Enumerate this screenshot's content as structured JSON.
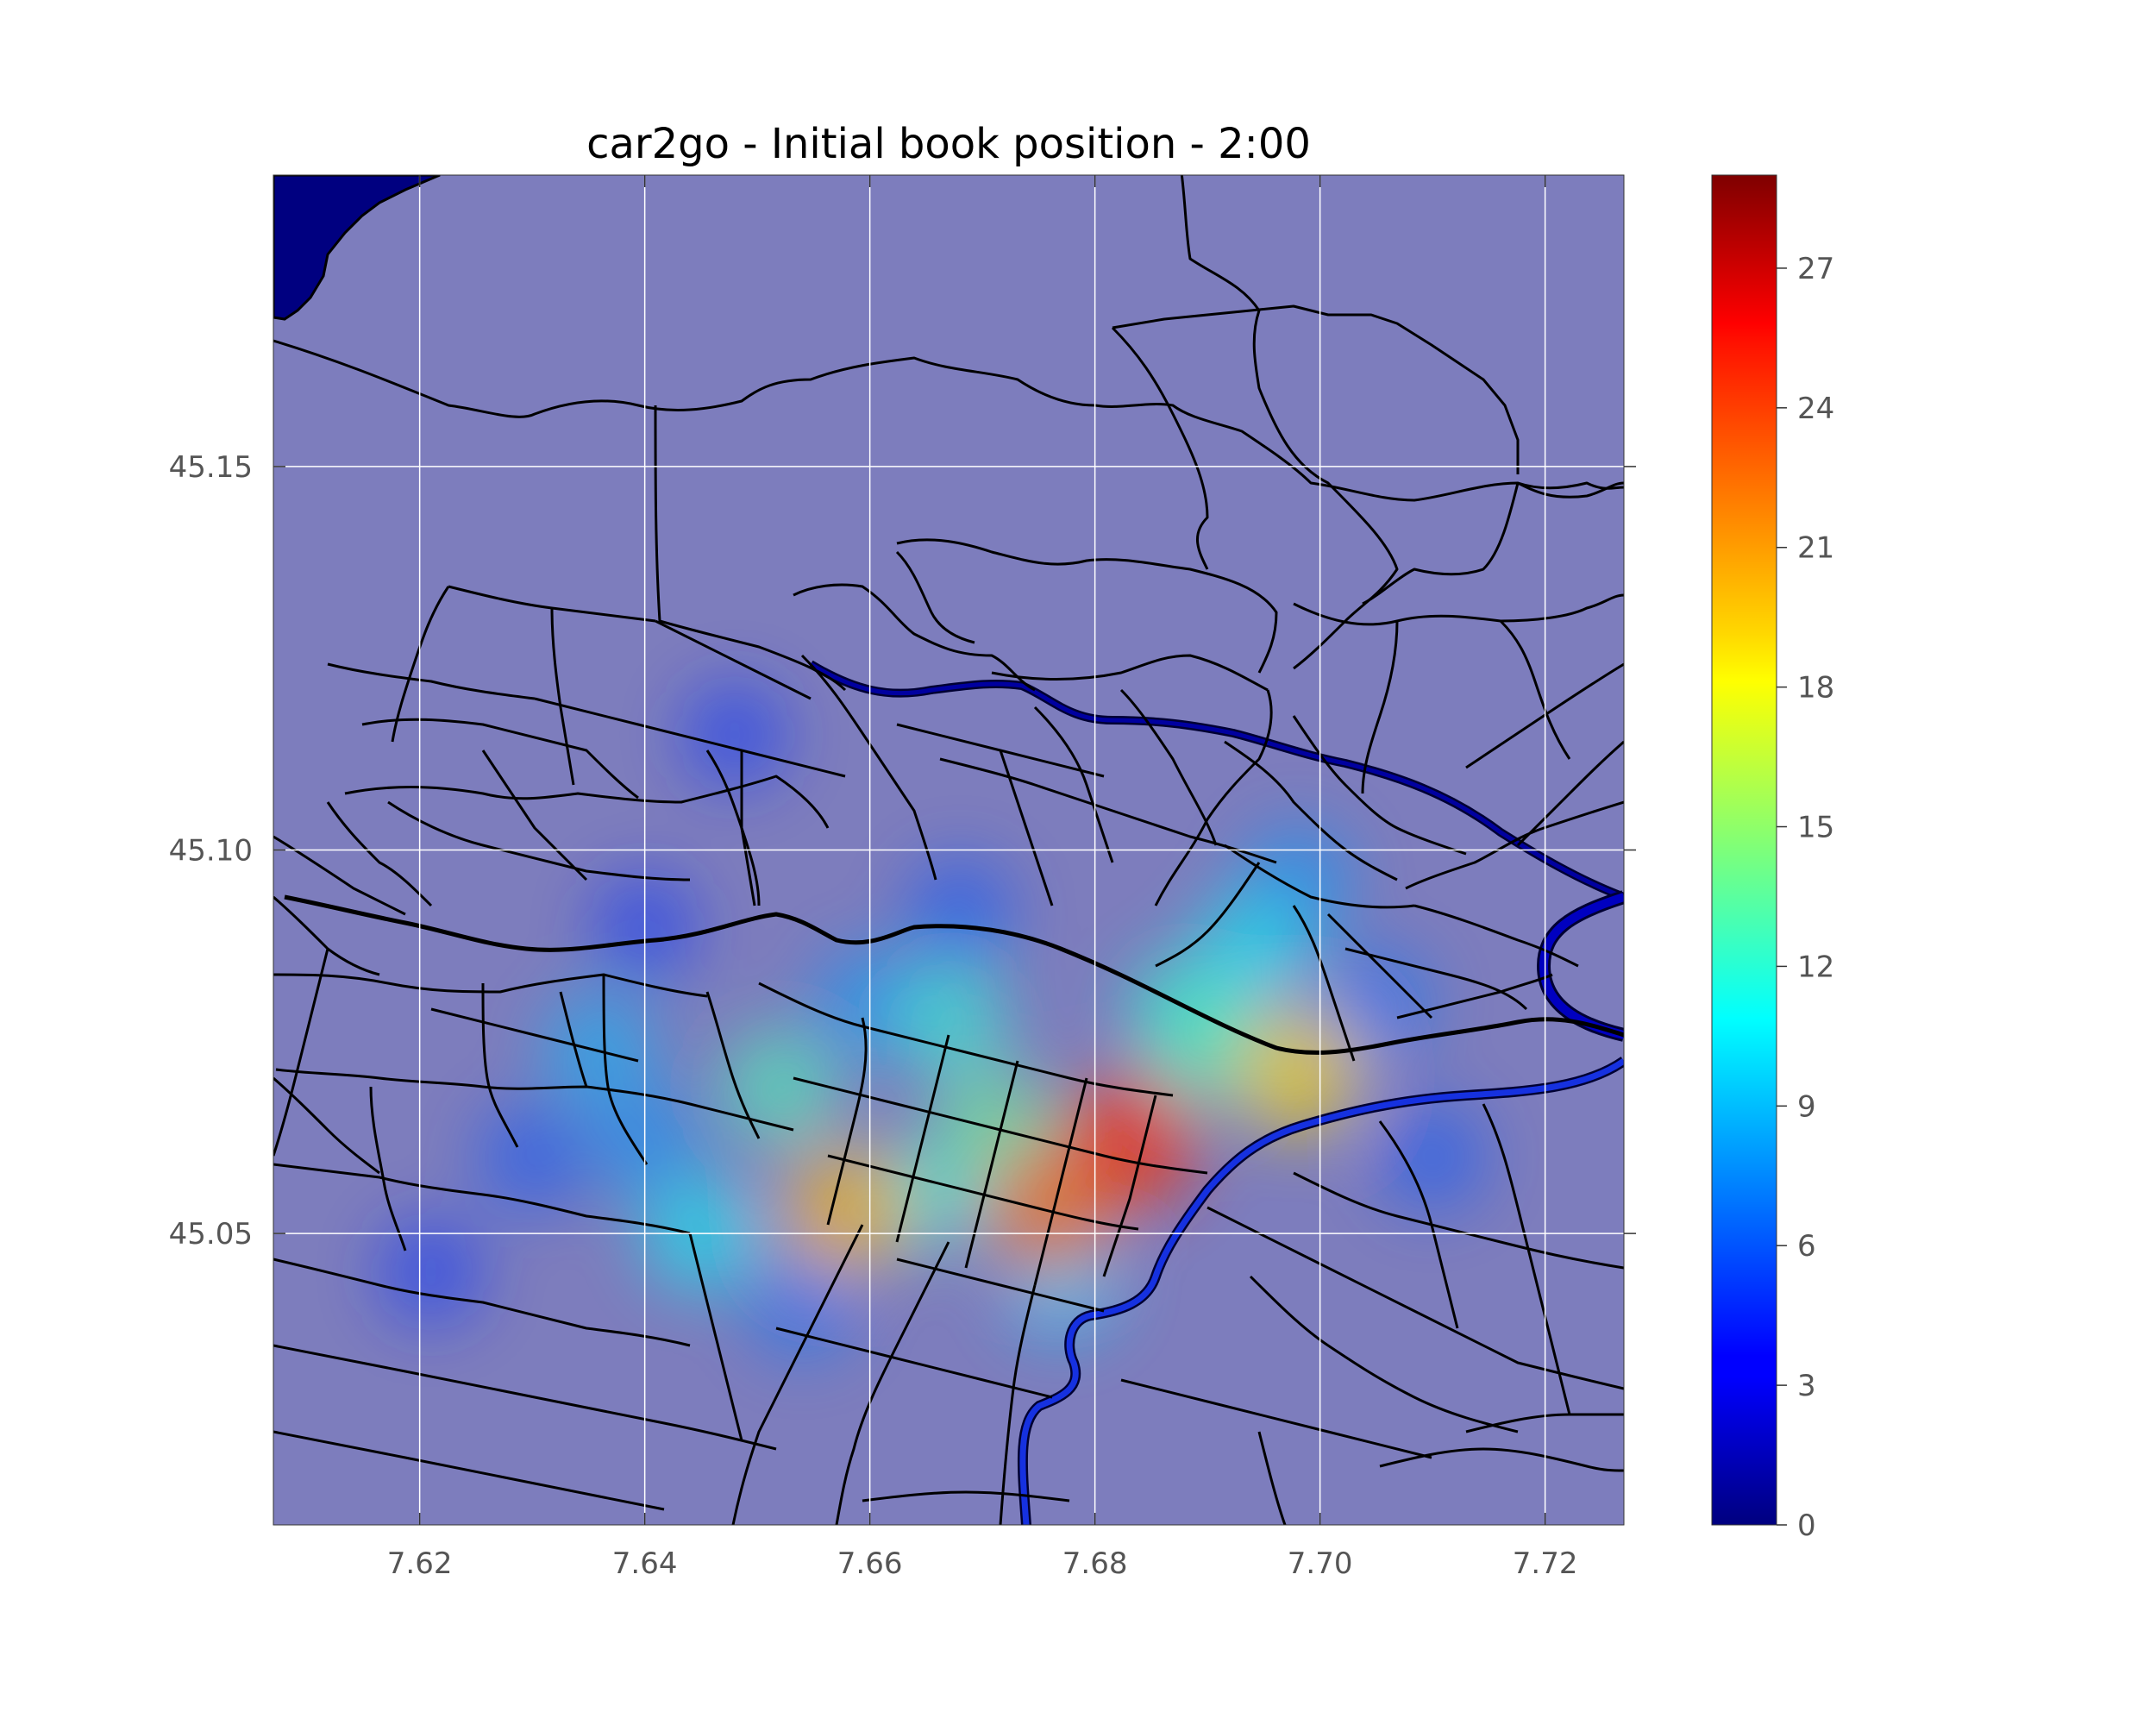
{
  "chart_data": {
    "type": "heatmap",
    "title": "car2go - Initial book position - 2:00",
    "xlabel": "",
    "ylabel": "",
    "xlim": [
      7.607,
      7.727
    ],
    "ylim": [
      45.012,
      45.188
    ],
    "x_ticks": [
      "7.62",
      "7.64",
      "7.66",
      "7.68",
      "7.70",
      "7.72"
    ],
    "x_tick_values": [
      7.62,
      7.64,
      7.66,
      7.68,
      7.7,
      7.72
    ],
    "y_ticks": [
      "45.05",
      "45.10",
      "45.15"
    ],
    "y_tick_values": [
      45.05,
      45.1,
      45.15
    ],
    "grid": true,
    "colormap": "jet",
    "colorbar": {
      "min": 0,
      "max": 29,
      "ticks": [
        "0",
        "3",
        "6",
        "9",
        "12",
        "15",
        "18",
        "21",
        "24",
        "27"
      ],
      "tick_values": [
        0,
        3,
        6,
        9,
        12,
        15,
        18,
        21,
        24,
        27
      ]
    },
    "hotspots": [
      {
        "lon": 7.683,
        "lat": 45.062,
        "value": 24
      },
      {
        "lon": 7.676,
        "lat": 45.053,
        "value": 22
      },
      {
        "lon": 7.658,
        "lat": 45.053,
        "value": 20
      },
      {
        "lon": 7.698,
        "lat": 45.071,
        "value": 19
      },
      {
        "lon": 7.671,
        "lat": 45.064,
        "value": 14
      },
      {
        "lon": 7.69,
        "lat": 45.074,
        "value": 13
      },
      {
        "lon": 7.652,
        "lat": 45.069,
        "value": 13
      },
      {
        "lon": 7.667,
        "lat": 45.078,
        "value": 12
      },
      {
        "lon": 7.694,
        "lat": 45.087,
        "value": 11
      },
      {
        "lon": 7.688,
        "lat": 45.079,
        "value": 12
      },
      {
        "lon": 7.645,
        "lat": 45.05,
        "value": 11
      },
      {
        "lon": 7.665,
        "lat": 45.055,
        "value": 12
      },
      {
        "lon": 7.636,
        "lat": 45.074,
        "value": 9
      },
      {
        "lon": 7.677,
        "lat": 45.044,
        "value": 10
      },
      {
        "lon": 7.64,
        "lat": 45.062,
        "value": 8
      },
      {
        "lon": 7.66,
        "lat": 45.08,
        "value": 8
      },
      {
        "lon": 7.698,
        "lat": 45.096,
        "value": 8
      },
      {
        "lon": 7.71,
        "lat": 45.06,
        "value": 6
      },
      {
        "lon": 7.654,
        "lat": 45.041,
        "value": 7
      },
      {
        "lon": 7.63,
        "lat": 45.06,
        "value": 6
      },
      {
        "lon": 7.668,
        "lat": 45.092,
        "value": 6
      },
      {
        "lon": 7.648,
        "lat": 45.115,
        "value": 5
      },
      {
        "lon": 7.705,
        "lat": 45.08,
        "value": 7
      },
      {
        "lon": 7.621,
        "lat": 45.045,
        "value": 5
      },
      {
        "lon": 7.64,
        "lat": 45.09,
        "value": 5
      }
    ]
  }
}
